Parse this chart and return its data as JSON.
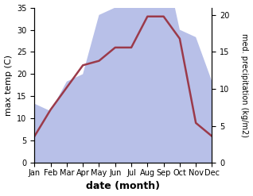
{
  "months": [
    "Jan",
    "Feb",
    "Mar",
    "Apr",
    "May",
    "Jun",
    "Jul",
    "Aug",
    "Sep",
    "Oct",
    "Nov",
    "Dec"
  ],
  "temp": [
    6,
    12,
    17,
    22,
    23,
    26,
    26,
    33,
    33,
    28,
    9,
    6
  ],
  "precip": [
    8,
    7,
    11,
    12,
    20,
    21,
    34,
    34,
    28,
    18,
    17,
    11
  ],
  "temp_color": "#9b3a4a",
  "precip_fill_color": "#b8c0e8",
  "background": "#ffffff",
  "ylabel_left": "max temp (C)",
  "ylabel_right": "med. precipitation (kg/m2)",
  "xlabel": "date (month)",
  "ylim_left": [
    0,
    35
  ],
  "ylim_right": [
    0,
    21
  ],
  "yticks_left": [
    0,
    5,
    10,
    15,
    20,
    25,
    30,
    35
  ],
  "yticks_right": [
    0,
    5,
    10,
    15,
    20
  ],
  "figsize": [
    3.18,
    2.47
  ],
  "dpi": 100
}
